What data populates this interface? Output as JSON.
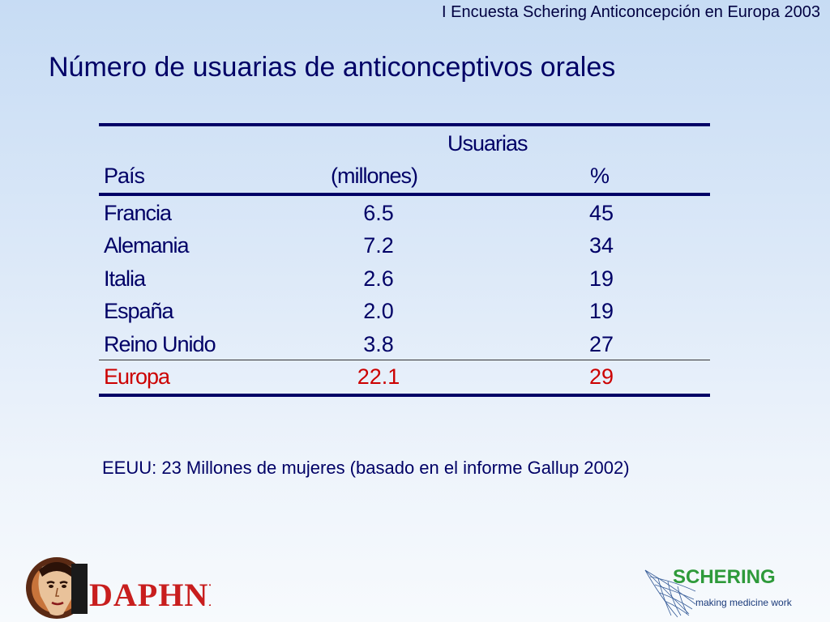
{
  "header": {
    "survey_label": "I Encuesta Schering Anticoncepción en Europa 2003"
  },
  "title": "Número de usuarias de anticonceptivos orales",
  "table": {
    "columns": {
      "country": "País",
      "users_line1": "Usuarias",
      "users_line2": "(millones)",
      "percent": "%"
    },
    "rows": [
      {
        "country": "Francia",
        "users": "6.5",
        "percent": "45"
      },
      {
        "country": "Alemania",
        "users": "7.2",
        "percent": "34"
      },
      {
        "country": "Italia",
        "users": "2.6",
        "percent": "19"
      },
      {
        "country": "España",
        "users": "2.0",
        "percent": "19"
      },
      {
        "country": "Reino Unido",
        "users": "3.8",
        "percent": "27"
      }
    ],
    "total": {
      "country": "Europa",
      "users": "22.1",
      "percent": "29"
    },
    "total_color": "#cc0000",
    "text_color": "#000066"
  },
  "note": "EEUU:  23 Millones de mujeres (basado en el informe Gallup 2002)",
  "logos": {
    "daphne": "DAPHNE",
    "schering_name": "SCHERING",
    "schering_tagline": "making medicine work"
  }
}
